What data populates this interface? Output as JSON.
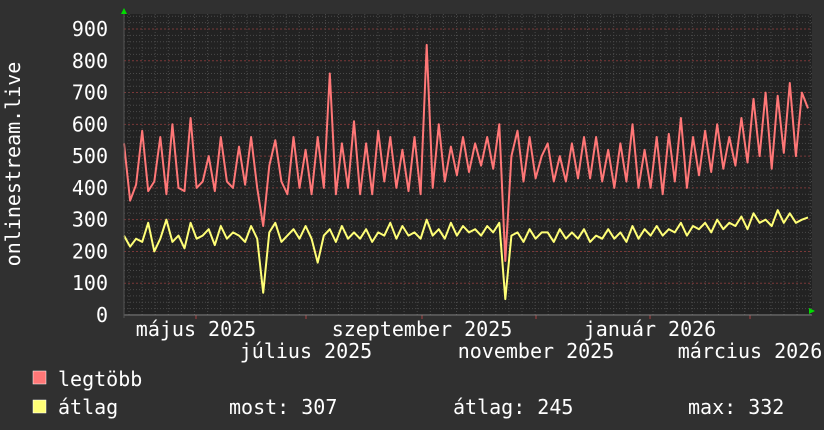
{
  "chart_data": {
    "type": "line",
    "title": "",
    "ylabel": "onlinestream.live",
    "xlabel": "",
    "ylim": [
      0,
      900
    ],
    "yticks": [
      "0",
      "100",
      "200",
      "300",
      "400",
      "500",
      "600",
      "700",
      "800",
      "900"
    ],
    "xtick_labels": [
      "május 2025",
      "július 2025",
      "szeptember 2025",
      "november 2025",
      "január 2026",
      "március 2026"
    ],
    "grid": true,
    "legend_placement": "bottom-left",
    "series": [
      {
        "name": "legtöbb",
        "color": "#ff7777",
        "values": [
          540,
          360,
          410,
          580,
          390,
          420,
          560,
          380,
          600,
          400,
          390,
          620,
          400,
          420,
          500,
          390,
          560,
          420,
          400,
          530,
          410,
          560,
          400,
          280,
          470,
          550,
          420,
          380,
          560,
          400,
          520,
          380,
          560,
          400,
          760,
          380,
          540,
          400,
          610,
          380,
          540,
          380,
          580,
          420,
          560,
          400,
          520,
          390,
          560,
          380,
          850,
          400,
          600,
          420,
          530,
          440,
          560,
          450,
          540,
          470,
          560,
          460,
          600,
          170,
          500,
          580,
          420,
          560,
          430,
          500,
          540,
          420,
          500,
          420,
          540,
          430,
          560,
          430,
          560,
          420,
          520,
          400,
          540,
          420,
          600,
          400,
          520,
          400,
          560,
          380,
          570,
          420,
          620,
          400,
          560,
          440,
          580,
          450,
          600,
          460,
          560,
          470,
          620,
          480,
          680,
          500,
          700,
          460,
          690,
          510,
          730,
          500,
          700,
          650
        ]
      },
      {
        "name": "átlag",
        "color": "#ffff77",
        "values": [
          250,
          215,
          240,
          230,
          290,
          200,
          240,
          300,
          230,
          250,
          210,
          290,
          240,
          250,
          270,
          220,
          280,
          240,
          260,
          250,
          230,
          280,
          240,
          70,
          260,
          290,
          230,
          250,
          270,
          240,
          280,
          240,
          165,
          250,
          270,
          230,
          280,
          240,
          260,
          240,
          270,
          230,
          260,
          250,
          290,
          240,
          280,
          250,
          260,
          240,
          300,
          250,
          270,
          240,
          290,
          250,
          280,
          260,
          270,
          250,
          280,
          260,
          290,
          50,
          250,
          260,
          230,
          270,
          240,
          260,
          260,
          230,
          270,
          240,
          260,
          240,
          270,
          230,
          250,
          240,
          270,
          240,
          260,
          230,
          280,
          240,
          270,
          250,
          280,
          250,
          270,
          260,
          290,
          250,
          280,
          270,
          290,
          260,
          300,
          270,
          290,
          280,
          310,
          270,
          320,
          290,
          300,
          280,
          330,
          290,
          320,
          290,
          300,
          307
        ]
      }
    ]
  },
  "legend": {
    "max_label": "legtöbb",
    "avg_label": "átlag",
    "stats": {
      "current": "most: 307",
      "average": "átlag: 245",
      "maximum": "max: 332"
    }
  }
}
